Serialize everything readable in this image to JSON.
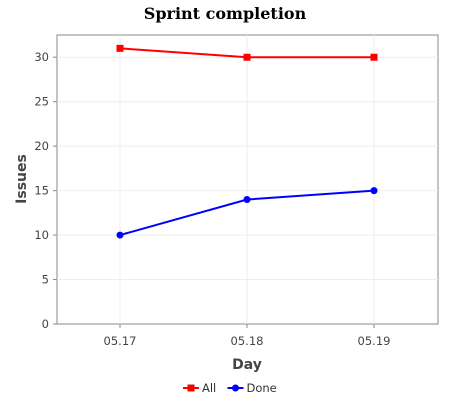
{
  "chart_data": {
    "type": "line",
    "title": "Sprint completion",
    "xlabel": "Day",
    "ylabel": "Issues",
    "categories": [
      "05.17",
      "05.18",
      "05.19"
    ],
    "ylim": [
      0,
      32.5
    ],
    "yticks": [
      0,
      5,
      10,
      15,
      20,
      25,
      30
    ],
    "grid": true,
    "legend_position": "bottom",
    "series": [
      {
        "name": "All",
        "values": [
          31,
          30,
          30
        ],
        "color": "#ff0000",
        "marker": "square"
      },
      {
        "name": "Done",
        "values": [
          10,
          14,
          15
        ],
        "color": "#0000ff",
        "marker": "circle"
      }
    ]
  }
}
